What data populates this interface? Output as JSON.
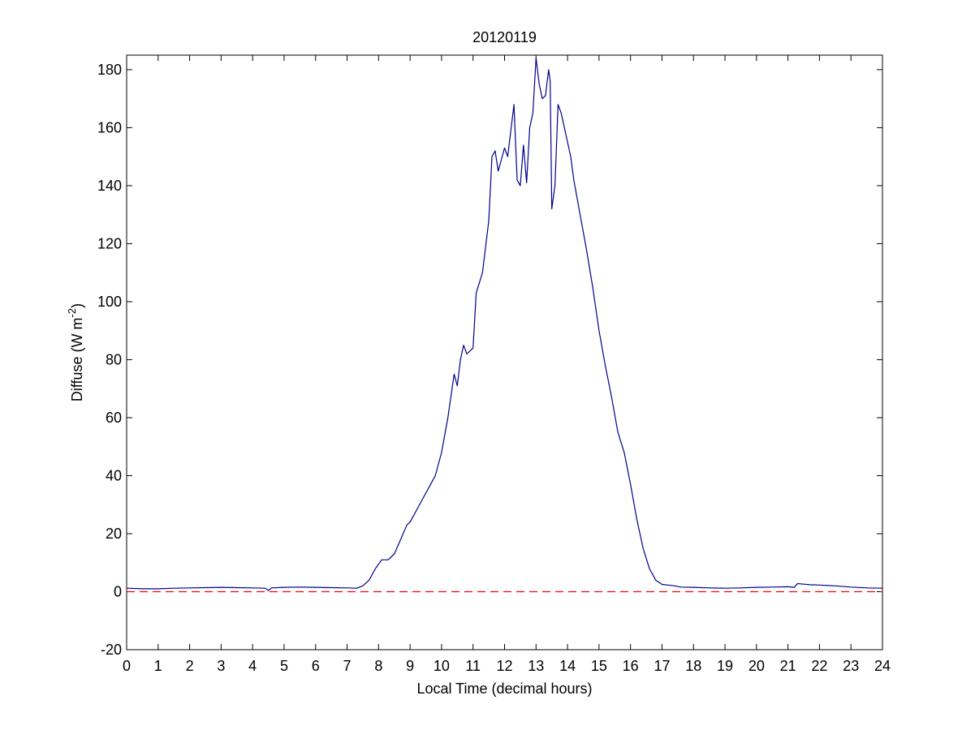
{
  "chart_data": {
    "type": "line",
    "title": "20120119",
    "xlabel": "Local Time (decimal hours)",
    "ylabel_main": "Diffuse (W m",
    "ylabel_sup": "-2",
    "ylabel_close": ")",
    "xlim": [
      0,
      24
    ],
    "ylim": [
      -20,
      185
    ],
    "xticks": [
      0,
      1,
      2,
      3,
      4,
      5,
      6,
      7,
      8,
      9,
      10,
      11,
      12,
      13,
      14,
      15,
      16,
      17,
      18,
      19,
      20,
      21,
      22,
      23,
      24
    ],
    "yticks": [
      -20,
      0,
      20,
      40,
      60,
      80,
      100,
      120,
      140,
      160,
      180
    ],
    "grid": false,
    "series": [
      {
        "color": "#00008b",
        "style": "solid",
        "x": [
          0,
          0.5,
          1,
          1.5,
          2,
          2.5,
          3,
          3.5,
          4,
          4.4,
          4.5,
          4.6,
          5,
          5.5,
          6,
          6.5,
          7,
          7.3,
          7.5,
          7.7,
          7.9,
          8.1,
          8.3,
          8.5,
          8.7,
          8.9,
          9,
          9.2,
          9.4,
          9.6,
          9.8,
          10,
          10.2,
          10.4,
          10.5,
          10.6,
          10.7,
          10.8,
          11,
          11.1,
          11.3,
          11.5,
          11.6,
          11.7,
          11.8,
          12,
          12.1,
          12.3,
          12.4,
          12.5,
          12.6,
          12.7,
          12.8,
          12.9,
          13,
          13.1,
          13.2,
          13.3,
          13.4,
          13.45,
          13.5,
          13.6,
          13.7,
          13.8,
          14,
          14.1,
          14.2,
          14.4,
          14.6,
          14.8,
          15,
          15.2,
          15.4,
          15.6,
          15.8,
          16,
          16.2,
          16.4,
          16.6,
          16.8,
          17,
          17.2,
          17.4,
          17.6,
          18,
          18.5,
          19,
          19.5,
          20,
          20.5,
          21,
          21.2,
          21.3,
          21.5,
          21.7,
          22,
          22.5,
          23,
          23.5,
          24
        ],
        "y": [
          1.2,
          1,
          1,
          1.2,
          1.3,
          1.4,
          1.5,
          1.4,
          1.3,
          1.2,
          0.4,
          1.3,
          1.5,
          1.6,
          1.5,
          1.4,
          1.3,
          1.2,
          2,
          4,
          8,
          11,
          11,
          13,
          18,
          23,
          24,
          28,
          32,
          36,
          40,
          48,
          60,
          75,
          71,
          80,
          85,
          82,
          84,
          103,
          110,
          128,
          150,
          152,
          145,
          153,
          150,
          168,
          142,
          140,
          154,
          141,
          160,
          165,
          184,
          175,
          170,
          171,
          180,
          176,
          132,
          140,
          168,
          165,
          155,
          150,
          142,
          130,
          118,
          105,
          90,
          78,
          67,
          55,
          48,
          37,
          25,
          15,
          8,
          4,
          2.5,
          2.3,
          2,
          1.6,
          1.5,
          1.3,
          1.2,
          1.3,
          1.5,
          1.6,
          1.7,
          1.5,
          2.8,
          2.6,
          2.4,
          2.3,
          2,
          1.6,
          1.3,
          1.2
        ]
      },
      {
        "color": "#ff0000",
        "style": "dashed",
        "x": [
          0,
          24
        ],
        "y": [
          0,
          0
        ]
      }
    ]
  }
}
